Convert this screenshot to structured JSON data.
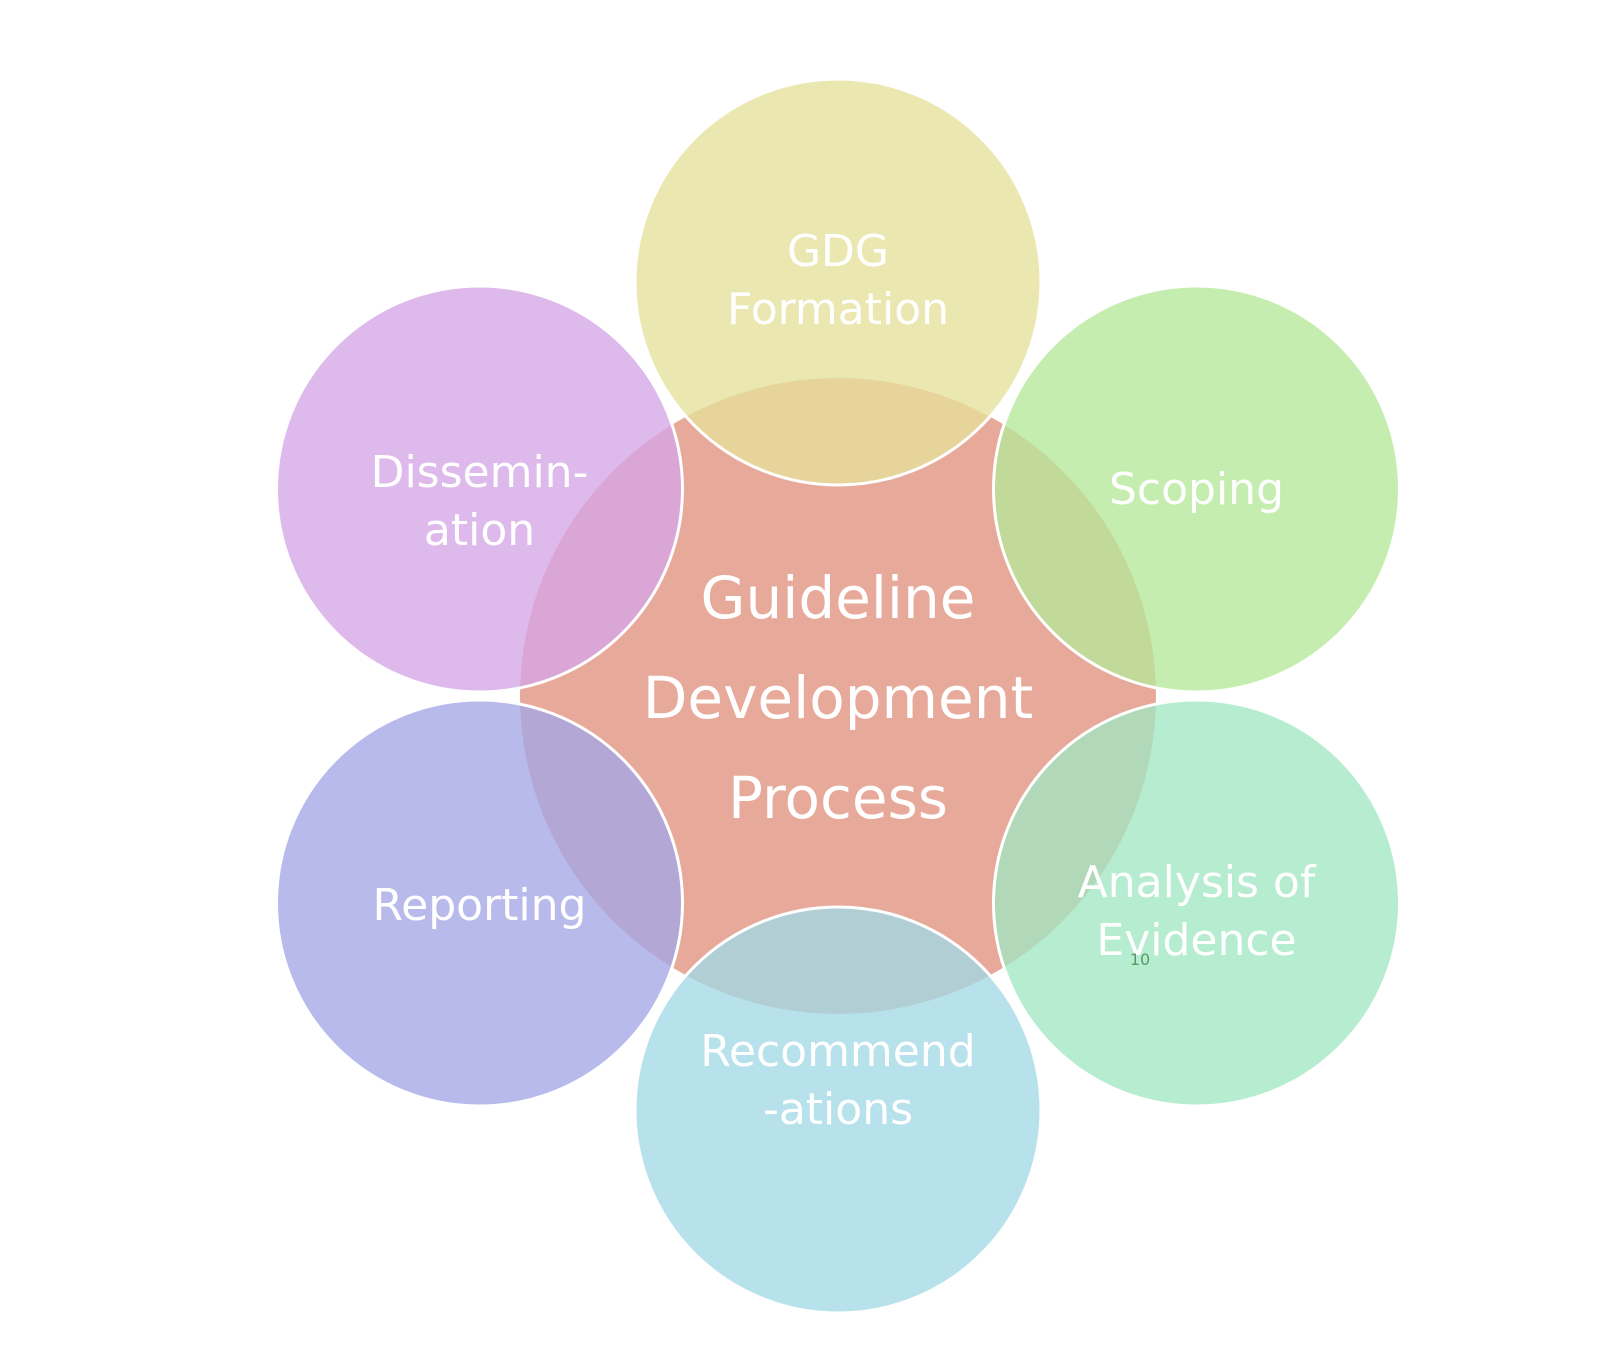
{
  "center": {
    "lines": [
      "Guideline",
      "Development",
      "Process"
    ],
    "color": "#e7a99a"
  },
  "nodes": [
    {
      "key": "gdg",
      "lines": [
        "GDG",
        "Formation"
      ],
      "color": "#e5e09b"
    },
    {
      "key": "scoping",
      "lines": [
        "Scoping"
      ],
      "color": "#b6e89a"
    },
    {
      "key": "analysis",
      "lines": [
        "Analysis of",
        "Evidence"
      ],
      "color": "#a1e7c1"
    },
    {
      "key": "recommendations",
      "lines": [
        "Recommend",
        "-ations"
      ],
      "color": "#a3d9e6"
    },
    {
      "key": "reporting",
      "lines": [
        "Reporting"
      ],
      "color": "#a3a6e6"
    },
    {
      "key": "dissemination",
      "lines": [
        "Dissemin-",
        "ation"
      ],
      "color": "#d5a5e6"
    }
  ],
  "page_number": "10"
}
